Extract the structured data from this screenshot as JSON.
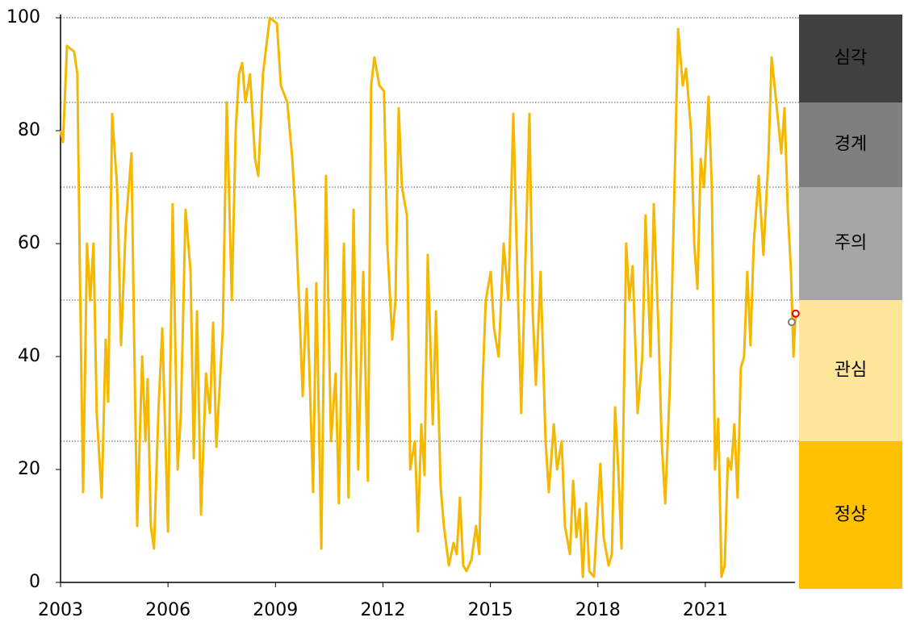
{
  "chart_data": {
    "type": "line",
    "x": [
      2003.0,
      2003.07,
      2003.18,
      2003.38,
      2003.47,
      2003.54,
      2003.63,
      2003.74,
      2003.83,
      2003.92,
      2004.01,
      2004.15,
      2004.26,
      2004.33,
      2004.44,
      2004.58,
      2004.69,
      2004.82,
      2004.98,
      2005.05,
      2005.14,
      2005.28,
      2005.37,
      2005.43,
      2005.52,
      2005.61,
      2005.73,
      2005.84,
      2006.0,
      2006.13,
      2006.27,
      2006.36,
      2006.49,
      2006.63,
      2006.72,
      2006.81,
      2006.92,
      2007.06,
      2007.17,
      2007.26,
      2007.35,
      2007.53,
      2007.64,
      2007.78,
      2007.89,
      2007.98,
      2008.07,
      2008.16,
      2008.29,
      2008.43,
      2008.52,
      2008.65,
      2008.84,
      2009.04,
      2009.15,
      2009.33,
      2009.47,
      2009.56,
      2009.67,
      2009.76,
      2009.87,
      2009.96,
      2010.05,
      2010.14,
      2010.28,
      2010.41,
      2010.55,
      2010.68,
      2010.77,
      2010.91,
      2011.04,
      2011.18,
      2011.31,
      2011.45,
      2011.58,
      2011.67,
      2011.76,
      2011.9,
      2012.03,
      2012.12,
      2012.26,
      2012.35,
      2012.44,
      2012.53,
      2012.67,
      2012.76,
      2012.89,
      2012.98,
      2013.07,
      2013.16,
      2013.25,
      2013.39,
      2013.48,
      2013.61,
      2013.7,
      2013.84,
      2013.97,
      2014.06,
      2014.15,
      2014.24,
      2014.33,
      2014.47,
      2014.6,
      2014.69,
      2014.78,
      2014.87,
      2015.01,
      2015.1,
      2015.23,
      2015.37,
      2015.5,
      2015.64,
      2015.73,
      2015.86,
      2015.99,
      2016.09,
      2016.18,
      2016.27,
      2016.4,
      2016.54,
      2016.63,
      2016.77,
      2016.86,
      2016.99,
      2017.08,
      2017.22,
      2017.31,
      2017.4,
      2017.49,
      2017.58,
      2017.67,
      2017.76,
      2017.89,
      2018.07,
      2018.16,
      2018.3,
      2018.39,
      2018.48,
      2018.57,
      2018.66,
      2018.79,
      2018.88,
      2018.97,
      2019.11,
      2019.24,
      2019.33,
      2019.47,
      2019.56,
      2019.69,
      2019.78,
      2019.88,
      2020.01,
      2020.1,
      2020.24,
      2020.37,
      2020.46,
      2020.6,
      2020.69,
      2020.78,
      2020.87,
      2020.96,
      2021.09,
      2021.18,
      2021.27,
      2021.36,
      2021.45,
      2021.54,
      2021.63,
      2021.72,
      2021.81,
      2021.9,
      2021.99,
      2022.08,
      2022.17,
      2022.26,
      2022.35,
      2022.49,
      2022.62,
      2022.76,
      2022.85,
      2022.98,
      2023.12,
      2023.21,
      2023.3,
      2023.39,
      2023.46,
      2023.52
    ],
    "series": [
      {
        "color": "#f5b800",
        "values": [
          80,
          78,
          95,
          94,
          90,
          55,
          16,
          60,
          50,
          60,
          30,
          15,
          43,
          32,
          83,
          70,
          42,
          63,
          76,
          45,
          10,
          40,
          25,
          36,
          10,
          6,
          30,
          45,
          9,
          67,
          20,
          30,
          66,
          55,
          22,
          48,
          12,
          37,
          30,
          46,
          24,
          45,
          85,
          50,
          80,
          90,
          92,
          85,
          90,
          75,
          72,
          90,
          100,
          99,
          88,
          85,
          75,
          65,
          48,
          33,
          52,
          35,
          16,
          53,
          6,
          72,
          25,
          37,
          14,
          60,
          15,
          66,
          20,
          55,
          18,
          88,
          93,
          88,
          87,
          60,
          43,
          50,
          84,
          70,
          65,
          20,
          25,
          9,
          28,
          19,
          58,
          28,
          48,
          17,
          10,
          3,
          7,
          5,
          15,
          3,
          2,
          4,
          10,
          5,
          35,
          50,
          55,
          45,
          40,
          60,
          50,
          83,
          60,
          30,
          60,
          83,
          48,
          35,
          55,
          25,
          16,
          28,
          20,
          25,
          10,
          5,
          18,
          8,
          13,
          1,
          14,
          2,
          1,
          21,
          8,
          3,
          5,
          31,
          20,
          6,
          60,
          50,
          56,
          30,
          40,
          65,
          40,
          67,
          45,
          25,
          14,
          35,
          60,
          98,
          88,
          91,
          80,
          60,
          52,
          75,
          70,
          86,
          70,
          20,
          29,
          1,
          3,
          22,
          20,
          28,
          15,
          38,
          40,
          55,
          42,
          60,
          72,
          58,
          75,
          93,
          85,
          76,
          84,
          66,
          55,
          40,
          47.6
        ]
      }
    ],
    "end_markers": [
      {
        "x": 2023.52,
        "y": 47.6,
        "color": "#e00000"
      },
      {
        "x": 2023.41,
        "y": 46.1,
        "color": "#808080"
      }
    ],
    "xlim": [
      2003,
      2023.57
    ],
    "xticks": [
      2003,
      2006,
      2009,
      2012,
      2015,
      2018,
      2021
    ],
    "ylim": [
      0,
      100
    ],
    "yticks": [
      0,
      20,
      40,
      60,
      80,
      100
    ],
    "bands": [
      {
        "label": "심각",
        "from": 85,
        "to": 100,
        "color": "#404040"
      },
      {
        "label": "경계",
        "from": 70,
        "to": 85,
        "color": "#7f7f7f"
      },
      {
        "label": "주의",
        "from": 50,
        "to": 70,
        "color": "#a6a6a6"
      },
      {
        "label": "관심",
        "from": 25,
        "to": 50,
        "color": "#ffe699"
      },
      {
        "label": "정상",
        "from": 0,
        "to": 25,
        "color": "#ffc000"
      }
    ]
  }
}
